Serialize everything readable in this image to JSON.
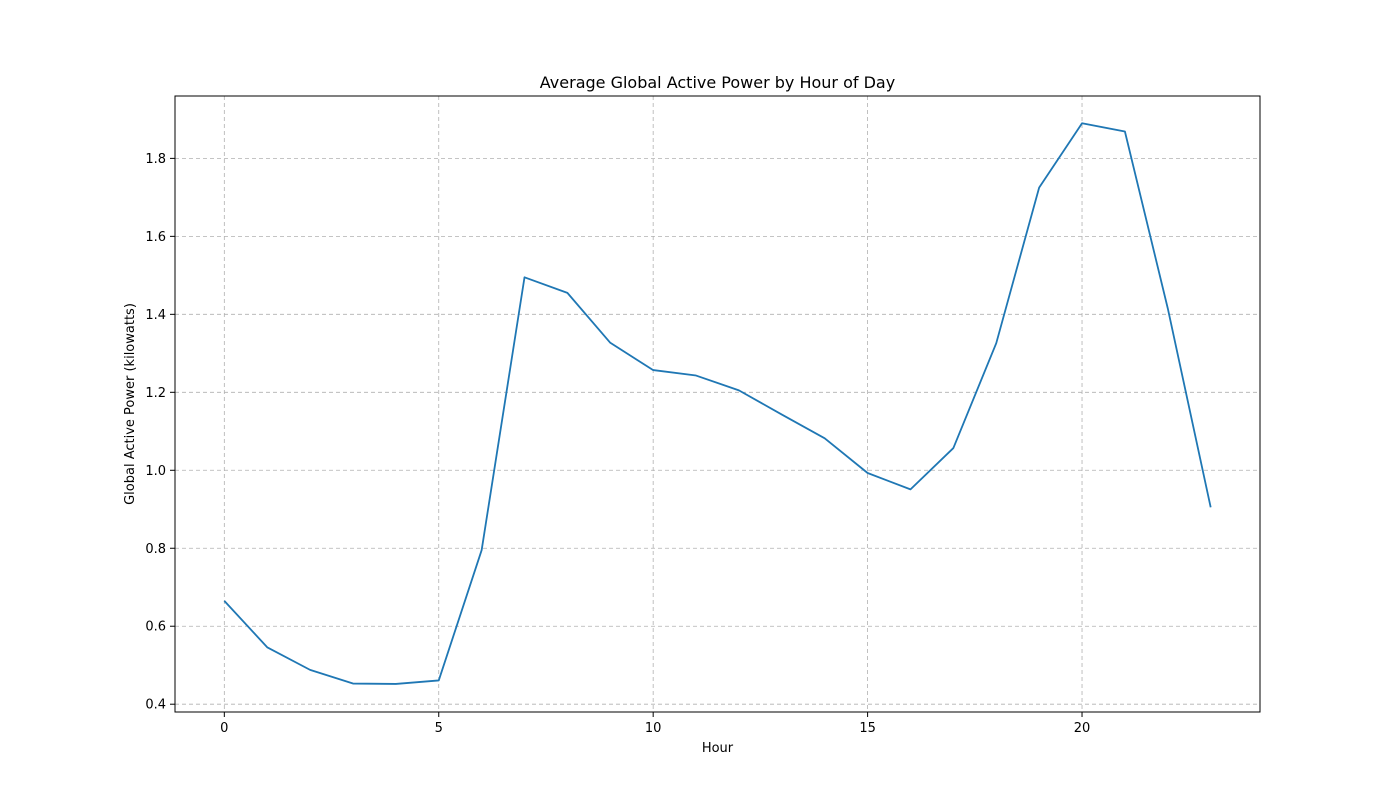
{
  "chart_data": {
    "type": "line",
    "title": "Average Global Active Power by Hour of Day",
    "xlabel": "Hour",
    "ylabel": "Global Active Power (kilowatts)",
    "xlim": [
      -1.15,
      24.15
    ],
    "ylim": [
      0.38,
      1.96
    ],
    "xticks": [
      0,
      5,
      10,
      15,
      20
    ],
    "yticks": [
      0.4,
      0.6,
      0.8,
      1.0,
      1.2,
      1.4,
      1.6,
      1.8
    ],
    "grid": true,
    "series": [
      {
        "color": "#1f77b4",
        "x": [
          0,
          1,
          2,
          3,
          4,
          5,
          6,
          7,
          8,
          9,
          10,
          11,
          12,
          13,
          14,
          15,
          16,
          17,
          18,
          19,
          20,
          21,
          22,
          23
        ],
        "values": [
          0.665,
          0.546,
          0.488,
          0.453,
          0.452,
          0.461,
          0.795,
          1.495,
          1.455,
          1.327,
          1.257,
          1.243,
          1.205,
          1.143,
          1.082,
          0.993,
          0.951,
          1.057,
          1.326,
          1.725,
          1.89,
          1.869,
          1.415,
          0.905
        ]
      }
    ]
  }
}
